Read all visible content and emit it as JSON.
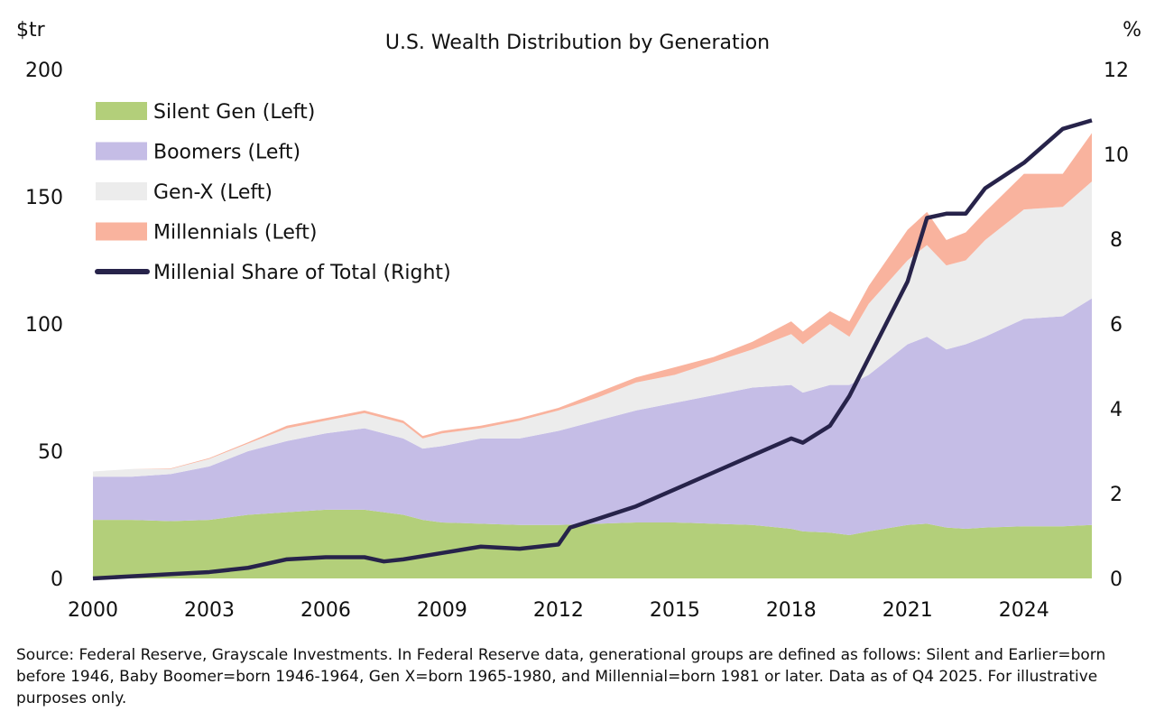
{
  "chart_data": {
    "type": "area",
    "title": "U.S. Wealth Distribution by Generation",
    "left_axis_unit": "$tr",
    "right_axis_unit": "%",
    "ylim_left": [
      0,
      200
    ],
    "ylim_right": [
      0,
      12
    ],
    "left_ticks": [
      0,
      50,
      100,
      150,
      200
    ],
    "right_ticks": [
      0,
      2,
      4,
      6,
      8,
      10,
      12
    ],
    "x_ticks": [
      2000,
      2003,
      2006,
      2009,
      2012,
      2015,
      2018,
      2021,
      2024
    ],
    "xlim": [
      2000,
      2025.75
    ],
    "grid": false,
    "legend_placement": "top-left",
    "stacked": true,
    "x": [
      2000,
      2001,
      2002,
      2003,
      2004,
      2005,
      2006,
      2007,
      2008,
      2008.5,
      2009,
      2010,
      2011,
      2012,
      2013,
      2014,
      2015,
      2016,
      2017,
      2018,
      2018.3,
      2019,
      2019.5,
      2020,
      2021,
      2021.5,
      2022,
      2022.5,
      2023,
      2024,
      2025,
      2025.75
    ],
    "series": [
      {
        "name": "Silent Gen (Left)",
        "color": "#b3cf7a",
        "axis": "left",
        "values": [
          23,
          23,
          22.5,
          23,
          25,
          26,
          27,
          27,
          25,
          23,
          22,
          21.5,
          21,
          21,
          21.5,
          22,
          22,
          21.5,
          21,
          19.5,
          18.5,
          18,
          17,
          18.5,
          21,
          21.5,
          20,
          19.5,
          20,
          20.5,
          20.5,
          21
        ]
      },
      {
        "name": "Boomers (Left)",
        "color": "#c5bde6",
        "axis": "left",
        "values": [
          17,
          17,
          18.5,
          21,
          25,
          28,
          30,
          32,
          30,
          28,
          30,
          33.5,
          34,
          37,
          40.5,
          44,
          47,
          50.5,
          54,
          56.5,
          54.5,
          58,
          59,
          61.5,
          71,
          73.5,
          70,
          72.5,
          75,
          81.5,
          82.5,
          89
        ]
      },
      {
        "name": "Gen-X (Left)",
        "color": "#ececec",
        "axis": "left",
        "values": [
          2,
          3,
          2,
          3,
          3,
          5,
          5,
          6,
          6,
          4,
          5,
          4,
          7,
          8,
          9,
          11,
          11,
          13,
          15,
          20,
          19,
          24,
          19,
          28,
          33,
          36,
          33,
          33,
          38,
          43,
          43,
          46
        ]
      },
      {
        "name": "Millennials (Left)",
        "color": "#f9b39e",
        "axis": "left",
        "values": [
          0,
          0,
          0.2,
          0.3,
          0.5,
          1,
          1,
          1,
          1,
          1,
          1,
          1,
          1,
          1,
          2,
          2,
          3,
          2,
          3,
          5,
          5,
          5,
          6,
          7,
          12,
          13,
          10,
          11,
          11,
          14,
          13,
          19
        ]
      }
    ],
    "line_series": {
      "name": "Millenial Share of Total (Right)",
      "color": "#27234a",
      "axis": "right",
      "x": [
        2000,
        2001,
        2002,
        2003,
        2004,
        2005,
        2006,
        2007,
        2007.5,
        2008,
        2009,
        2010,
        2011,
        2012,
        2012.3,
        2013,
        2014,
        2015,
        2016,
        2017,
        2018,
        2018.3,
        2019,
        2019.5,
        2020,
        2021,
        2021.5,
        2022,
        2022.5,
        2023,
        2024,
        2025,
        2025.75
      ],
      "values": [
        0,
        0.05,
        0.1,
        0.15,
        0.25,
        0.45,
        0.5,
        0.5,
        0.4,
        0.45,
        0.6,
        0.75,
        0.7,
        0.8,
        1.2,
        1.4,
        1.7,
        2.1,
        2.5,
        2.9,
        3.3,
        3.2,
        3.6,
        4.3,
        5.2,
        7.0,
        8.5,
        8.6,
        8.6,
        9.2,
        9.8,
        10.6,
        10.8
      ]
    }
  },
  "source": "Source: Federal Reserve, Grayscale Investments. In Federal Reserve data, generational groups are defined as follows: Silent and Earlier=born before 1946, Baby Boomer=born 1946-1964, Gen X=born 1965-1980, and Millennial=born 1981 or later. Data as of Q4 2025. For illustrative purposes only."
}
